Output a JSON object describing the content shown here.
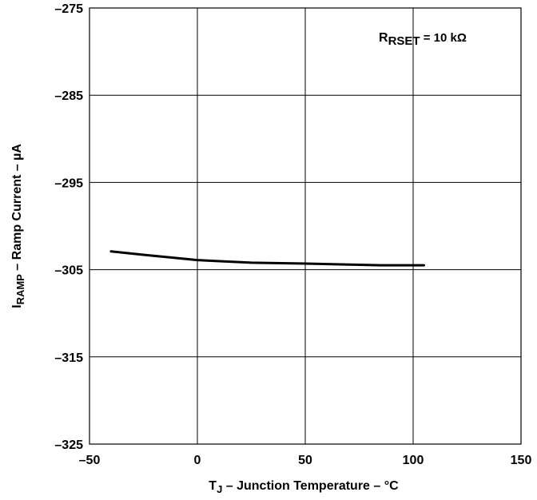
{
  "chart_data": {
    "type": "line",
    "x": [
      -40,
      -25,
      0,
      25,
      50,
      85,
      105
    ],
    "series": [
      {
        "values": [
          -302.9,
          -303.3,
          -303.9,
          -304.2,
          -304.3,
          -304.5,
          -304.5
        ]
      }
    ],
    "xlim": [
      -50,
      150
    ],
    "ylim": [
      -325,
      -275
    ],
    "x_ticks": [
      -50,
      0,
      50,
      100,
      150
    ],
    "y_ticks": [
      -275,
      -285,
      -295,
      -305,
      -315,
      -325
    ],
    "x_tick_labels": [
      "–50",
      "0",
      "50",
      "100",
      "150"
    ],
    "y_tick_labels": [
      "–275",
      "–285",
      "–295",
      "–305",
      "–315",
      "–325"
    ],
    "grid": true,
    "xlabel": {
      "main": "T",
      "sub": "J",
      "rest": " – Junction Temperature – °C"
    },
    "ylabel": {
      "main": "I",
      "sub": "RAMP",
      "rest": " –  Ramp Current – µA"
    },
    "annotation": {
      "main": "R",
      "sub": "RSET",
      "rest": " = 10 kΩ"
    },
    "line_color": "#000000"
  }
}
